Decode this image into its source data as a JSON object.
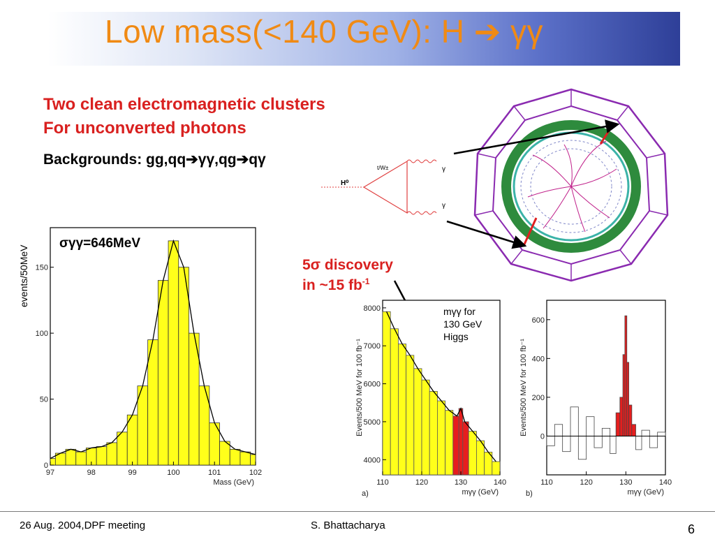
{
  "slide": {
    "title": "Low mass(<140 GeV): H ➔ γγ",
    "line1": "Two clean electromagnetic clusters",
    "line2": "For unconverted photons",
    "backgrounds": "Backgrounds: gg,qq➔γγ,qg➔qγ",
    "discovery1": "5σ discovery",
    "discovery2_prefix": "in ~15 fb",
    "discovery2_sup": "-1",
    "mgg_note": [
      "mγγ for",
      "130 GeV",
      "Higgs"
    ],
    "sigma_label": "σγγ=646MeV",
    "ylabel_left": "events/50MeV",
    "footer_left": "26 Aug. 2004,DPF meeting",
    "footer_center": "S. Bhattacharya",
    "page_number": "6"
  },
  "feynman": {
    "h_label": "H⁰",
    "loop_label": "t/W±",
    "gamma1": "γ",
    "gamma2": "γ"
  },
  "chart_data": [
    {
      "type": "bar",
      "xlabel": "Mass (GeV)",
      "xlim": [
        97,
        102
      ],
      "ylim": [
        0,
        180
      ],
      "xticks": [
        "97",
        "98",
        "99",
        "100",
        "101",
        "102"
      ],
      "yticks": [
        "0",
        "50",
        "100",
        "150"
      ],
      "x": [
        97.0,
        97.25,
        97.5,
        97.75,
        98.0,
        98.25,
        98.5,
        98.75,
        99.0,
        99.25,
        99.5,
        99.75,
        100.0,
        100.25,
        100.5,
        100.75,
        101.0,
        101.25,
        101.5,
        101.75,
        102.0
      ],
      "values": [
        5,
        9,
        12,
        10,
        13,
        14,
        17,
        25,
        38,
        60,
        95,
        140,
        170,
        150,
        100,
        60,
        32,
        18,
        12,
        10,
        8
      ],
      "fit": "gaussian"
    },
    {
      "type": "bar",
      "panel": "a)",
      "xlabel": "mγγ (GeV)",
      "ylabel": "Events/500 MeV for 100 fb⁻¹",
      "xlim": [
        110,
        140
      ],
      "ylim": [
        3600,
        8200
      ],
      "xticks": [
        "110",
        "120",
        "130",
        "140"
      ],
      "yticks": [
        "4000",
        "5000",
        "6000",
        "7000",
        "8000"
      ],
      "x": [
        111,
        113,
        115,
        117,
        119,
        121,
        123,
        125,
        127,
        129,
        130,
        131,
        133,
        135,
        137,
        139
      ],
      "values": [
        7900,
        7450,
        7050,
        6750,
        6400,
        6100,
        5800,
        5550,
        5300,
        5150,
        5350,
        5000,
        4750,
        4500,
        4200,
        3950
      ],
      "signal_region": [
        129,
        131
      ]
    },
    {
      "type": "bar",
      "panel": "b)",
      "xlabel": "mγγ (GeV)",
      "ylabel": "Events/500 MeV for 100 fb⁻¹",
      "xlim": [
        110,
        140
      ],
      "ylim": [
        -200,
        700
      ],
      "xticks": [
        "110",
        "120",
        "130",
        "140"
      ],
      "yticks": [
        "0",
        "200",
        "400",
        "600"
      ],
      "x": [
        111,
        113,
        115,
        117,
        119,
        121,
        123,
        125,
        127,
        128,
        129,
        129.5,
        130,
        130.5,
        131,
        132,
        133,
        135,
        137,
        139
      ],
      "values": [
        -50,
        60,
        -80,
        150,
        -120,
        100,
        -60,
        40,
        -90,
        120,
        200,
        420,
        620,
        380,
        160,
        60,
        -70,
        30,
        -60,
        20
      ],
      "signal_region": [
        128,
        132
      ]
    }
  ]
}
